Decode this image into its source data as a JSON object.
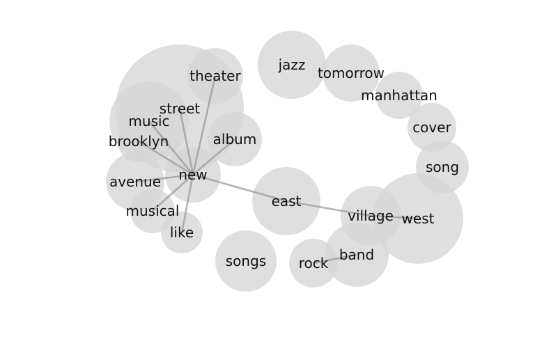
{
  "diagram": {
    "type": "word-network",
    "colors": {
      "bubble": "#d6d6d6",
      "edge": "#9a9a9a",
      "text": "#111111",
      "background": "#ffffff"
    },
    "nodes": [
      {
        "id": "theater",
        "label": "theater"
      },
      {
        "id": "street",
        "label": "street"
      },
      {
        "id": "music",
        "label": "music"
      },
      {
        "id": "brooklyn",
        "label": "brooklyn"
      },
      {
        "id": "album",
        "label": "album"
      },
      {
        "id": "new",
        "label": "new"
      },
      {
        "id": "avenue",
        "label": "avenue"
      },
      {
        "id": "musical",
        "label": "musical"
      },
      {
        "id": "like",
        "label": "like"
      },
      {
        "id": "jazz",
        "label": "jazz"
      },
      {
        "id": "tomorrow",
        "label": "tomorrow"
      },
      {
        "id": "manhattan",
        "label": "manhattan"
      },
      {
        "id": "cover",
        "label": "cover"
      },
      {
        "id": "song",
        "label": "song"
      },
      {
        "id": "east",
        "label": "east"
      },
      {
        "id": "village",
        "label": "village"
      },
      {
        "id": "west",
        "label": "west"
      },
      {
        "id": "band",
        "label": "band"
      },
      {
        "id": "rock",
        "label": "rock"
      },
      {
        "id": "songs",
        "label": "songs"
      }
    ],
    "edges": [
      {
        "from": "new",
        "to": "theater"
      },
      {
        "from": "new",
        "to": "street"
      },
      {
        "from": "new",
        "to": "music"
      },
      {
        "from": "new",
        "to": "brooklyn"
      },
      {
        "from": "new",
        "to": "album"
      },
      {
        "from": "new",
        "to": "avenue"
      },
      {
        "from": "new",
        "to": "musical"
      },
      {
        "from": "new",
        "to": "like"
      },
      {
        "from": "new",
        "to": "east"
      },
      {
        "from": "east",
        "to": "village"
      },
      {
        "from": "village",
        "to": "west"
      },
      {
        "from": "rock",
        "to": "band"
      }
    ]
  }
}
